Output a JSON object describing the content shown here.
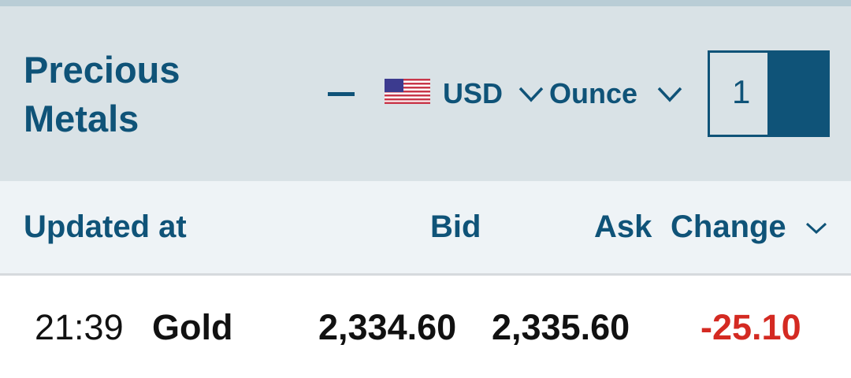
{
  "header": {
    "title_line1": "Precious",
    "title_line2": "Metals",
    "currency": "USD",
    "currency_flag": "us-flag-icon",
    "unit": "Ounce",
    "quantity": "1"
  },
  "columns": {
    "updated": "Updated at",
    "bid": "Bid",
    "ask": "Ask",
    "change": "Change"
  },
  "rows": [
    {
      "time": "21:39",
      "metal": "Gold",
      "bid": "2,334.60",
      "ask": "2,335.60",
      "change": "-25.10"
    }
  ],
  "colors": {
    "accent": "#0f5378",
    "negative": "#d42a22"
  }
}
